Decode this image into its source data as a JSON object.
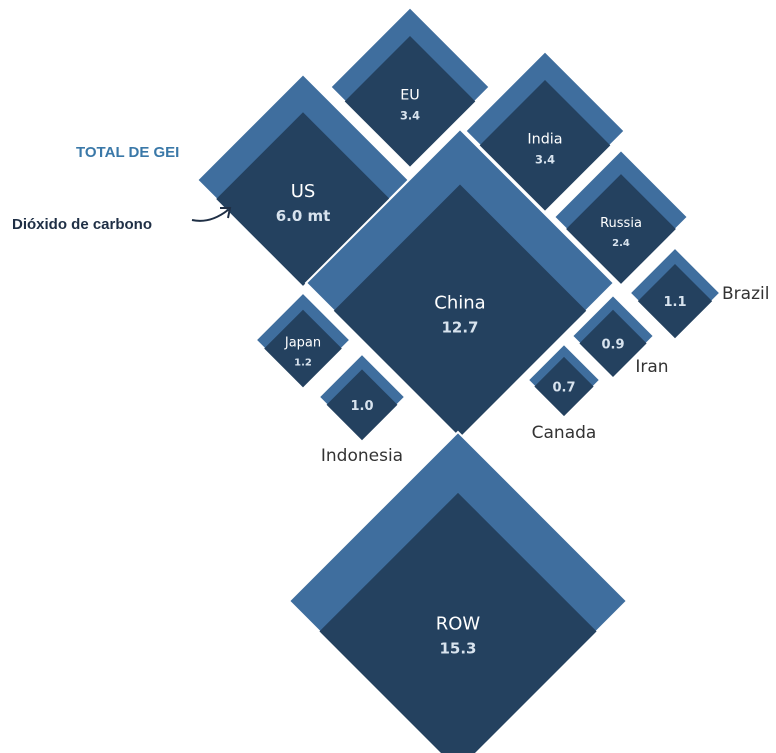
{
  "legend": {
    "total_label": "TOTAL DE GEI",
    "co2_label": "Dióxido de carbono"
  },
  "colors": {
    "total": "#3f6e9e",
    "co2": "#24415f",
    "text_light": "#ffffff",
    "value_text": "#d8e3ee",
    "outside_label": "#333333"
  },
  "chart_data": {
    "type": "diamond-area",
    "unit": "mt",
    "series": [
      {
        "name": "TOTAL DE GEI"
      },
      {
        "name": "Dióxido de carbono"
      }
    ],
    "items": [
      {
        "name": "US",
        "value": 6.0,
        "value_label": "6.0 mt"
      },
      {
        "name": "EU",
        "value": 3.4,
        "value_label": "3.4"
      },
      {
        "name": "India",
        "value": 3.4,
        "value_label": "3.4"
      },
      {
        "name": "China",
        "value": 12.7,
        "value_label": "12.7"
      },
      {
        "name": "Russia",
        "value": 2.4,
        "value_label": "2.4"
      },
      {
        "name": "Brazil",
        "value": 1.1,
        "value_label": "1.1"
      },
      {
        "name": "Japan",
        "value": 1.2,
        "value_label": "1.2"
      },
      {
        "name": "Indonesia",
        "value": 1.0,
        "value_label": "1.0"
      },
      {
        "name": "Iran",
        "value": 0.9,
        "value_label": "0.9"
      },
      {
        "name": "Canada",
        "value": 0.7,
        "value_label": "0.7"
      },
      {
        "name": "ROW",
        "value": 15.3,
        "value_label": "15.3"
      }
    ]
  }
}
